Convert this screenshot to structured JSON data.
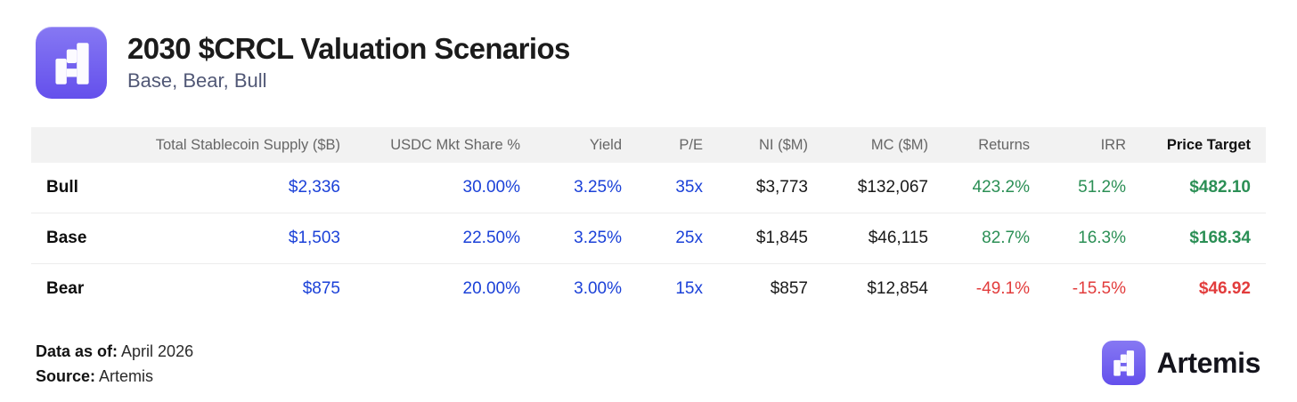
{
  "header": {
    "title": "2030 $CRCL Valuation Scenarios",
    "subtitle": "Base, Bear, Bull"
  },
  "chart_data": {
    "type": "table",
    "title": "2030 $CRCL Valuation Scenarios",
    "subtitle": "Base, Bear, Bull",
    "row_header": "",
    "columns": [
      {
        "label": "Total Stablecoin Supply ($B)",
        "value_style": "blue",
        "emphasis": false
      },
      {
        "label": "USDC Mkt Share %",
        "value_style": "blue",
        "emphasis": false
      },
      {
        "label": "Yield",
        "value_style": "blue",
        "emphasis": false
      },
      {
        "label": "P/E",
        "value_style": "blue",
        "emphasis": false
      },
      {
        "label": "NI ($M)",
        "value_style": "dark",
        "emphasis": false
      },
      {
        "label": "MC ($M)",
        "value_style": "dark",
        "emphasis": false
      },
      {
        "label": "Returns",
        "value_style": "sentiment",
        "emphasis": false
      },
      {
        "label": "IRR",
        "value_style": "sentiment",
        "emphasis": false
      },
      {
        "label": "Price Target",
        "value_style": "sentiment",
        "emphasis": true
      }
    ],
    "rows": [
      {
        "scenario": "Bull",
        "sentiment": "positive",
        "values": [
          "$2,336",
          "30.00%",
          "3.25%",
          "35x",
          "$3,773",
          "$132,067",
          "423.2%",
          "51.2%",
          "$482.10"
        ]
      },
      {
        "scenario": "Base",
        "sentiment": "positive",
        "values": [
          "$1,503",
          "22.50%",
          "3.25%",
          "25x",
          "$1,845",
          "$46,115",
          "82.7%",
          "16.3%",
          "$168.34"
        ]
      },
      {
        "scenario": "Bear",
        "sentiment": "negative",
        "values": [
          "$875",
          "20.00%",
          "3.00%",
          "15x",
          "$857",
          "$12,854",
          "-49.1%",
          "-15.5%",
          "$46.92"
        ]
      }
    ]
  },
  "footer": {
    "data_as_of_label": "Data as of:",
    "data_as_of_value": " April 2026",
    "source_label": "Source:",
    "source_value": " Artemis",
    "brand_name": "Artemis"
  },
  "icons": {
    "logo": "artemis-logo-icon"
  },
  "colors": {
    "accent_blue": "#1b41d8",
    "positive_green": "#2b8f55",
    "negative_red": "#e23c3c",
    "brand_purple_top": "#8678f3",
    "brand_purple_bottom": "#6450ec",
    "header_row_bg": "#f2f2f2"
  }
}
